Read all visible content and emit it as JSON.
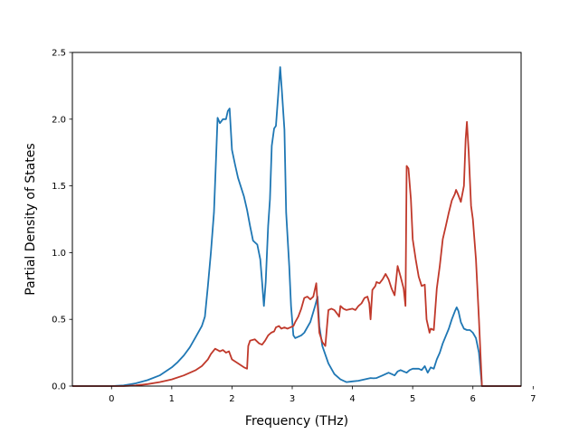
{
  "chart_data": {
    "type": "line",
    "title": "",
    "xlabel": "Frequency (THz)",
    "ylabel": "Partial Density of States",
    "xlim": [
      -0.65,
      6.8
    ],
    "ylim": [
      0,
      2.5
    ],
    "xticks": [
      0,
      1,
      2,
      3,
      4,
      5,
      6,
      7
    ],
    "yticks": [
      0.0,
      0.5,
      1.0,
      1.5,
      2.0,
      2.5
    ],
    "xtick_labels": [
      "0",
      "1",
      "2",
      "3",
      "4",
      "5",
      "6",
      "7"
    ],
    "ytick_labels": [
      "0.0",
      "0.5",
      "1.0",
      "1.5",
      "2.0",
      "2.5"
    ],
    "grid": false,
    "legend": "none",
    "series": [
      {
        "color": "#1f77b4",
        "points": [
          [
            -0.65,
            0.0
          ],
          [
            0.0,
            0.0
          ],
          [
            0.2,
            0.005
          ],
          [
            0.4,
            0.02
          ],
          [
            0.6,
            0.045
          ],
          [
            0.8,
            0.08
          ],
          [
            1.0,
            0.14
          ],
          [
            1.1,
            0.18
          ],
          [
            1.2,
            0.23
          ],
          [
            1.3,
            0.29
          ],
          [
            1.4,
            0.37
          ],
          [
            1.5,
            0.45
          ],
          [
            1.55,
            0.52
          ],
          [
            1.6,
            0.75
          ],
          [
            1.65,
            1.0
          ],
          [
            1.7,
            1.3
          ],
          [
            1.73,
            1.65
          ],
          [
            1.76,
            2.01
          ],
          [
            1.8,
            1.97
          ],
          [
            1.85,
            2.0
          ],
          [
            1.9,
            2.0
          ],
          [
            1.93,
            2.06
          ],
          [
            1.96,
            2.08
          ],
          [
            2.0,
            1.77
          ],
          [
            2.05,
            1.66
          ],
          [
            2.1,
            1.56
          ],
          [
            2.2,
            1.42
          ],
          [
            2.25,
            1.32
          ],
          [
            2.3,
            1.2
          ],
          [
            2.35,
            1.09
          ],
          [
            2.42,
            1.06
          ],
          [
            2.47,
            0.95
          ],
          [
            2.5,
            0.78
          ],
          [
            2.53,
            0.6
          ],
          [
            2.56,
            0.78
          ],
          [
            2.6,
            1.2
          ],
          [
            2.63,
            1.4
          ],
          [
            2.66,
            1.8
          ],
          [
            2.7,
            1.93
          ],
          [
            2.73,
            1.95
          ],
          [
            2.77,
            2.2
          ],
          [
            2.8,
            2.39
          ],
          [
            2.83,
            2.2
          ],
          [
            2.87,
            1.92
          ],
          [
            2.9,
            1.3
          ],
          [
            2.95,
            0.9
          ],
          [
            2.98,
            0.6
          ],
          [
            3.02,
            0.38
          ],
          [
            3.05,
            0.36
          ],
          [
            3.1,
            0.37
          ],
          [
            3.15,
            0.38
          ],
          [
            3.2,
            0.4
          ],
          [
            3.3,
            0.48
          ],
          [
            3.38,
            0.6
          ],
          [
            3.42,
            0.67
          ],
          [
            3.45,
            0.45
          ],
          [
            3.5,
            0.3
          ],
          [
            3.6,
            0.17
          ],
          [
            3.7,
            0.09
          ],
          [
            3.8,
            0.05
          ],
          [
            3.9,
            0.03
          ],
          [
            4.0,
            0.035
          ],
          [
            4.1,
            0.04
          ],
          [
            4.2,
            0.05
          ],
          [
            4.3,
            0.06
          ],
          [
            4.35,
            0.058
          ],
          [
            4.4,
            0.06
          ],
          [
            4.5,
            0.08
          ],
          [
            4.55,
            0.09
          ],
          [
            4.6,
            0.1
          ],
          [
            4.65,
            0.09
          ],
          [
            4.7,
            0.08
          ],
          [
            4.75,
            0.11
          ],
          [
            4.8,
            0.12
          ],
          [
            4.85,
            0.11
          ],
          [
            4.9,
            0.1
          ],
          [
            4.95,
            0.12
          ],
          [
            5.0,
            0.13
          ],
          [
            5.1,
            0.13
          ],
          [
            5.15,
            0.12
          ],
          [
            5.2,
            0.15
          ],
          [
            5.25,
            0.1
          ],
          [
            5.3,
            0.14
          ],
          [
            5.35,
            0.13
          ],
          [
            5.4,
            0.2
          ],
          [
            5.45,
            0.25
          ],
          [
            5.5,
            0.32
          ],
          [
            5.6,
            0.43
          ],
          [
            5.65,
            0.5
          ],
          [
            5.7,
            0.56
          ],
          [
            5.73,
            0.59
          ],
          [
            5.76,
            0.56
          ],
          [
            5.8,
            0.48
          ],
          [
            5.85,
            0.43
          ],
          [
            5.9,
            0.42
          ],
          [
            5.95,
            0.42
          ],
          [
            6.0,
            0.4
          ],
          [
            6.05,
            0.36
          ],
          [
            6.1,
            0.25
          ],
          [
            6.15,
            0.0
          ],
          [
            6.8,
            0.0
          ]
        ]
      },
      {
        "color": "#c0392b",
        "points": [
          [
            -0.65,
            0.0
          ],
          [
            0.0,
            0.0
          ],
          [
            0.2,
            0.0
          ],
          [
            0.4,
            0.005
          ],
          [
            0.6,
            0.015
          ],
          [
            0.8,
            0.03
          ],
          [
            1.0,
            0.05
          ],
          [
            1.2,
            0.08
          ],
          [
            1.4,
            0.12
          ],
          [
            1.5,
            0.15
          ],
          [
            1.6,
            0.2
          ],
          [
            1.65,
            0.24
          ],
          [
            1.72,
            0.28
          ],
          [
            1.8,
            0.26
          ],
          [
            1.85,
            0.27
          ],
          [
            1.9,
            0.25
          ],
          [
            1.95,
            0.26
          ],
          [
            2.0,
            0.2
          ],
          [
            2.1,
            0.17
          ],
          [
            2.2,
            0.14
          ],
          [
            2.25,
            0.13
          ],
          [
            2.27,
            0.3
          ],
          [
            2.3,
            0.34
          ],
          [
            2.38,
            0.35
          ],
          [
            2.45,
            0.32
          ],
          [
            2.5,
            0.31
          ],
          [
            2.55,
            0.34
          ],
          [
            2.6,
            0.38
          ],
          [
            2.65,
            0.4
          ],
          [
            2.7,
            0.41
          ],
          [
            2.73,
            0.44
          ],
          [
            2.78,
            0.45
          ],
          [
            2.82,
            0.43
          ],
          [
            2.87,
            0.44
          ],
          [
            2.92,
            0.43
          ],
          [
            2.97,
            0.44
          ],
          [
            3.02,
            0.45
          ],
          [
            3.05,
            0.48
          ],
          [
            3.1,
            0.52
          ],
          [
            3.15,
            0.58
          ],
          [
            3.2,
            0.66
          ],
          [
            3.25,
            0.67
          ],
          [
            3.3,
            0.65
          ],
          [
            3.35,
            0.67
          ],
          [
            3.4,
            0.77
          ],
          [
            3.45,
            0.4
          ],
          [
            3.5,
            0.33
          ],
          [
            3.55,
            0.3
          ],
          [
            3.6,
            0.57
          ],
          [
            3.65,
            0.58
          ],
          [
            3.7,
            0.57
          ],
          [
            3.75,
            0.54
          ],
          [
            3.78,
            0.52
          ],
          [
            3.8,
            0.6
          ],
          [
            3.85,
            0.58
          ],
          [
            3.9,
            0.57
          ],
          [
            4.0,
            0.58
          ],
          [
            4.05,
            0.57
          ],
          [
            4.1,
            0.6
          ],
          [
            4.15,
            0.62
          ],
          [
            4.2,
            0.66
          ],
          [
            4.25,
            0.67
          ],
          [
            4.28,
            0.62
          ],
          [
            4.3,
            0.5
          ],
          [
            4.33,
            0.72
          ],
          [
            4.38,
            0.75
          ],
          [
            4.4,
            0.78
          ],
          [
            4.45,
            0.77
          ],
          [
            4.5,
            0.8
          ],
          [
            4.55,
            0.84
          ],
          [
            4.6,
            0.8
          ],
          [
            4.65,
            0.73
          ],
          [
            4.7,
            0.68
          ],
          [
            4.75,
            0.9
          ],
          [
            4.8,
            0.82
          ],
          [
            4.85,
            0.73
          ],
          [
            4.88,
            0.6
          ],
          [
            4.9,
            1.65
          ],
          [
            4.93,
            1.63
          ],
          [
            4.97,
            1.4
          ],
          [
            5.0,
            1.1
          ],
          [
            5.05,
            0.95
          ],
          [
            5.1,
            0.82
          ],
          [
            5.15,
            0.75
          ],
          [
            5.2,
            0.76
          ],
          [
            5.23,
            0.5
          ],
          [
            5.28,
            0.4
          ],
          [
            5.3,
            0.43
          ],
          [
            5.35,
            0.42
          ],
          [
            5.4,
            0.73
          ],
          [
            5.45,
            0.9
          ],
          [
            5.5,
            1.1
          ],
          [
            5.55,
            1.2
          ],
          [
            5.6,
            1.3
          ],
          [
            5.65,
            1.39
          ],
          [
            5.7,
            1.44
          ],
          [
            5.72,
            1.47
          ],
          [
            5.75,
            1.44
          ],
          [
            5.8,
            1.38
          ],
          [
            5.85,
            1.5
          ],
          [
            5.88,
            1.85
          ],
          [
            5.9,
            1.98
          ],
          [
            5.93,
            1.75
          ],
          [
            5.97,
            1.35
          ],
          [
            6.0,
            1.25
          ],
          [
            6.05,
            0.95
          ],
          [
            6.1,
            0.5
          ],
          [
            6.15,
            0.0
          ],
          [
            6.8,
            0.0
          ]
        ]
      }
    ]
  }
}
